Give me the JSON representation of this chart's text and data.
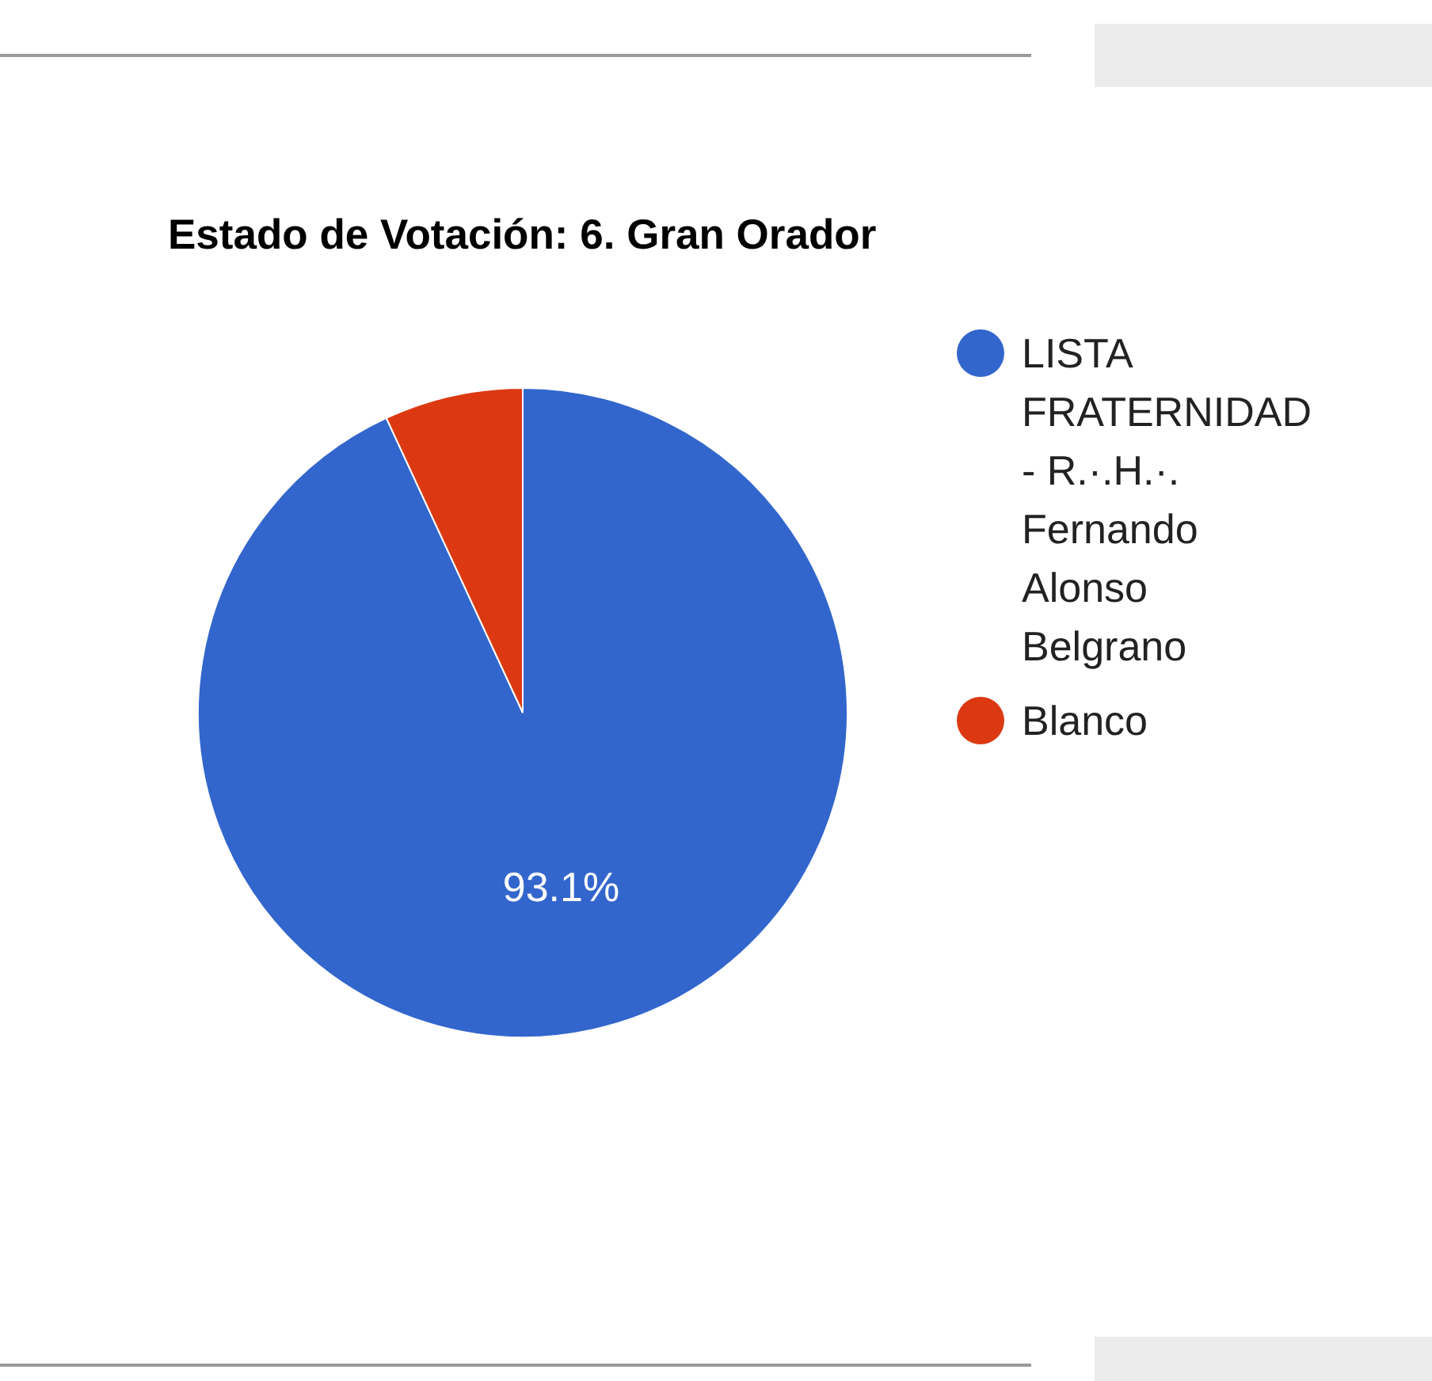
{
  "chart_data": {
    "type": "pie",
    "title": "Estado de Votación: 6. Gran Orador",
    "categories": [
      "LISTA FRATERNIDAD - R.·.H.·. Fernando Alonso Belgrano",
      "Blanco"
    ],
    "values": [
      93.1,
      6.9
    ],
    "colors": [
      "#3366cc",
      "#dc3912"
    ],
    "value_labels": [
      "93.1%",
      null
    ],
    "legend": "top right"
  }
}
